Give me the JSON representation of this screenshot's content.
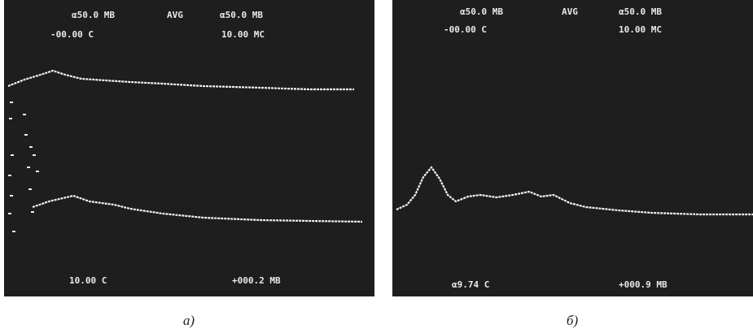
{
  "panels": [
    {
      "readouts": {
        "ch1": "α50.0 MB",
        "mode": "AVG",
        "ch2": "α50.0 MB",
        "delay": "-00.00 C",
        "timebase": "10.00 MC",
        "cursor_time": "10.00 C",
        "cursor_volt": "+000.2 MB"
      },
      "caption": "а)"
    },
    {
      "readouts": {
        "ch1": "α50.0 MB",
        "mode": "AVG",
        "ch2": "α50.0 MB",
        "delay": "-00.00 C",
        "timebase": "10.00 MC",
        "cursor_time": "α9.74 C",
        "cursor_volt": "+000.9 MB"
      },
      "caption": "б)"
    }
  ]
}
